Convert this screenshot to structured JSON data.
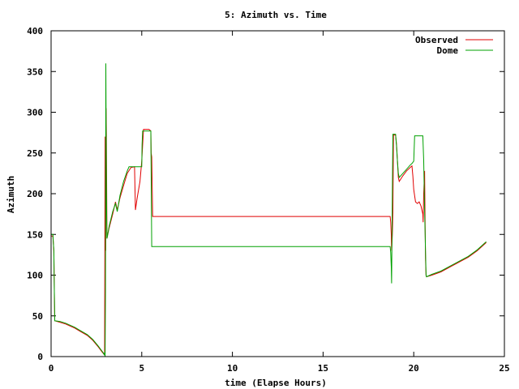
{
  "chart_data": {
    "type": "line",
    "title": "5: Azimuth vs. Time",
    "xlabel": "time (Elapse Hours)",
    "ylabel": "Azimuth",
    "xlim": [
      0,
      25
    ],
    "ylim": [
      0,
      400
    ],
    "xticks": [
      0,
      5,
      10,
      15,
      20,
      25
    ],
    "yticks": [
      0,
      50,
      100,
      150,
      200,
      250,
      300,
      350,
      400
    ],
    "grid": false,
    "legend_position": "top-right",
    "series": [
      {
        "name": "Observed",
        "color": "#e00000",
        "points": [
          [
            0.0,
            148
          ],
          [
            0.1,
            148
          ],
          [
            0.15,
            130
          ],
          [
            0.18,
            80
          ],
          [
            0.2,
            44
          ],
          [
            0.5,
            42
          ],
          [
            0.8,
            40
          ],
          [
            1.1,
            37
          ],
          [
            1.3,
            35
          ],
          [
            1.6,
            31
          ],
          [
            2.0,
            26
          ],
          [
            2.3,
            20
          ],
          [
            2.6,
            12
          ],
          [
            2.8,
            6
          ],
          [
            2.95,
            2
          ],
          [
            2.98,
            270
          ],
          [
            3.01,
            130
          ],
          [
            3.03,
            305
          ],
          [
            3.05,
            270
          ],
          [
            3.08,
            145
          ],
          [
            3.2,
            158
          ],
          [
            3.4,
            175
          ],
          [
            3.55,
            190
          ],
          [
            3.65,
            180
          ],
          [
            3.8,
            195
          ],
          [
            4.0,
            210
          ],
          [
            4.2,
            225
          ],
          [
            4.4,
            232
          ],
          [
            4.6,
            233
          ],
          [
            4.65,
            180
          ],
          [
            4.75,
            195
          ],
          [
            4.9,
            215
          ],
          [
            5.0,
            240
          ],
          [
            5.05,
            260
          ],
          [
            5.1,
            279
          ],
          [
            5.4,
            279
          ],
          [
            5.5,
            277
          ],
          [
            5.52,
            250
          ],
          [
            5.55,
            245
          ],
          [
            5.58,
            200
          ],
          [
            5.6,
            172
          ],
          [
            18.7,
            172
          ],
          [
            18.73,
            165
          ],
          [
            18.76,
            150
          ],
          [
            18.78,
            130
          ],
          [
            18.82,
            150
          ],
          [
            18.85,
            178
          ],
          [
            18.88,
            272
          ],
          [
            19.0,
            272
          ],
          [
            19.05,
            260
          ],
          [
            19.1,
            240
          ],
          [
            19.15,
            220
          ],
          [
            19.2,
            215
          ],
          [
            19.4,
            222
          ],
          [
            19.6,
            228
          ],
          [
            19.8,
            232
          ],
          [
            19.9,
            234
          ],
          [
            19.95,
            222
          ],
          [
            20.0,
            205
          ],
          [
            20.1,
            190
          ],
          [
            20.2,
            188
          ],
          [
            20.3,
            190
          ],
          [
            20.4,
            185
          ],
          [
            20.5,
            175
          ],
          [
            20.52,
            165
          ],
          [
            20.55,
            200
          ],
          [
            20.6,
            228
          ],
          [
            20.62,
            175
          ],
          [
            20.65,
            120
          ],
          [
            20.68,
            100
          ],
          [
            20.7,
            98
          ],
          [
            21.0,
            100
          ],
          [
            21.5,
            104
          ],
          [
            22.0,
            110
          ],
          [
            22.5,
            116
          ],
          [
            23.0,
            122
          ],
          [
            23.5,
            130
          ],
          [
            24.0,
            140
          ]
        ]
      },
      {
        "name": "Dome",
        "color": "#00a000",
        "points": [
          [
            0.0,
            150
          ],
          [
            0.1,
            150
          ],
          [
            0.15,
            130
          ],
          [
            0.18,
            80
          ],
          [
            0.2,
            44
          ],
          [
            0.5,
            43
          ],
          [
            0.8,
            41
          ],
          [
            1.1,
            38
          ],
          [
            1.3,
            36
          ],
          [
            1.6,
            32
          ],
          [
            2.0,
            27
          ],
          [
            2.3,
            21
          ],
          [
            2.6,
            13
          ],
          [
            2.8,
            7
          ],
          [
            2.9,
            4
          ],
          [
            2.93,
            2
          ],
          [
            2.95,
            5
          ],
          [
            2.98,
            0
          ],
          [
            3.0,
            80
          ],
          [
            3.02,
            360
          ],
          [
            3.05,
            200
          ],
          [
            3.08,
            145
          ],
          [
            3.2,
            160
          ],
          [
            3.4,
            178
          ],
          [
            3.55,
            188
          ],
          [
            3.65,
            178
          ],
          [
            3.8,
            198
          ],
          [
            4.0,
            215
          ],
          [
            4.2,
            228
          ],
          [
            4.3,
            233
          ],
          [
            5.0,
            233
          ],
          [
            5.02,
            260
          ],
          [
            5.05,
            277
          ],
          [
            5.5,
            277
          ],
          [
            5.55,
            135
          ],
          [
            18.7,
            135
          ],
          [
            18.73,
            128
          ],
          [
            18.76,
            110
          ],
          [
            18.78,
            90
          ],
          [
            18.82,
            200
          ],
          [
            18.85,
            273
          ],
          [
            19.0,
            273
          ],
          [
            19.05,
            258
          ],
          [
            19.1,
            240
          ],
          [
            19.15,
            225
          ],
          [
            19.2,
            220
          ],
          [
            19.4,
            225
          ],
          [
            19.6,
            230
          ],
          [
            19.8,
            235
          ],
          [
            19.9,
            237
          ],
          [
            20.0,
            240
          ],
          [
            20.05,
            271
          ],
          [
            20.5,
            271
          ],
          [
            20.55,
            240
          ],
          [
            20.6,
            180
          ],
          [
            20.65,
            130
          ],
          [
            20.68,
            100
          ],
          [
            20.7,
            98
          ],
          [
            21.0,
            101
          ],
          [
            21.5,
            105
          ],
          [
            22.0,
            111
          ],
          [
            22.5,
            117
          ],
          [
            23.0,
            123
          ],
          [
            23.5,
            131
          ],
          [
            24.0,
            141
          ]
        ]
      }
    ]
  }
}
